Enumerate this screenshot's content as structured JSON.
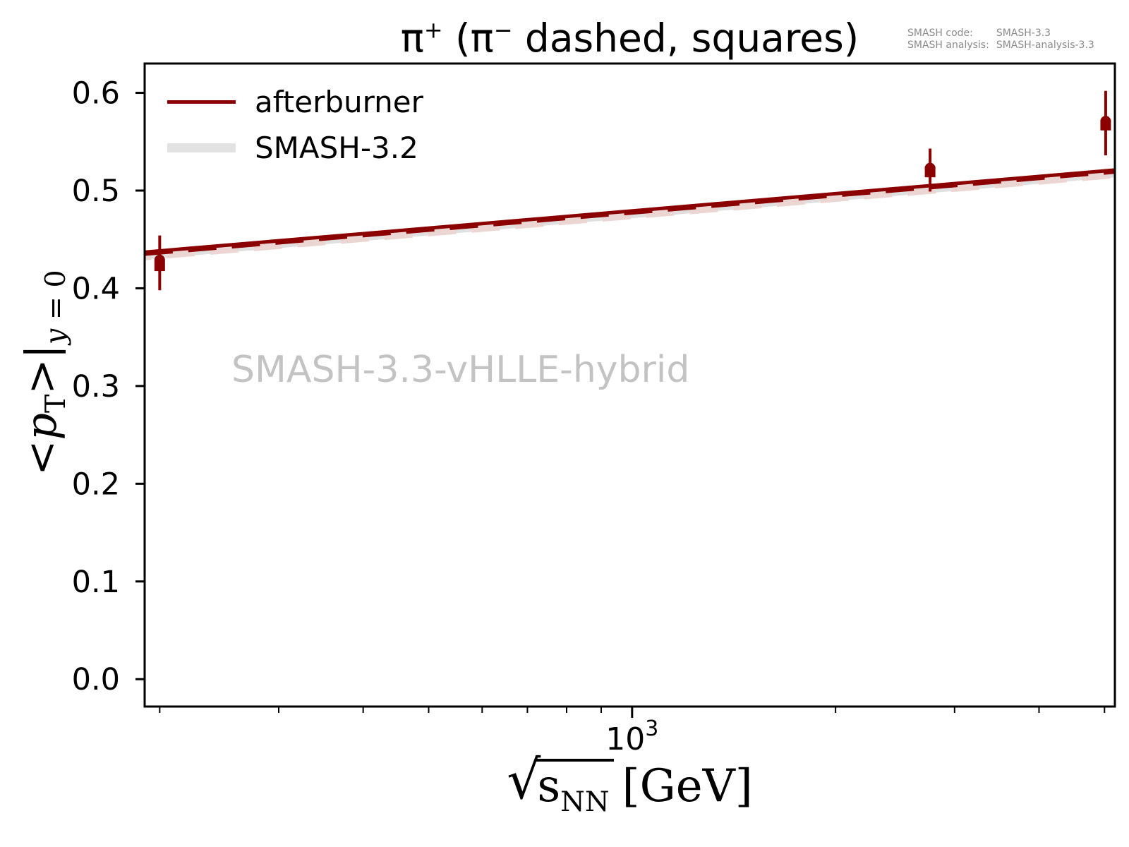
{
  "title": {
    "text": "π+ (π− dashed, squares)",
    "parts": {
      "pi1": "π",
      "sup1": "+",
      "mid": " (π",
      "sup2": "−",
      "post": " dashed, squares)"
    }
  },
  "annotation": {
    "rows": [
      {
        "label": "SMASH code:",
        "value": "SMASH-3.3"
      },
      {
        "label": "SMASH analysis:",
        "value": "SMASH-analysis-3.3"
      }
    ]
  },
  "watermark": "SMASH-3.3-vHLLE-hybrid",
  "legend": {
    "items": [
      {
        "label": "afterburner",
        "color": "#8b0000",
        "swatch": "thin-dark-line"
      },
      {
        "label": "SMASH-3.2",
        "color": "#e2e2e2",
        "swatch": "thick-gray-line"
      }
    ]
  },
  "axes": {
    "ylabel": {
      "open": "<",
      "var": "p",
      "varsub": "T",
      "close": ">|",
      "subvar": "y",
      "subrest": " = 0"
    },
    "xlabel": {
      "radical": "√",
      "var": "s",
      "varsub": "NN",
      "unit": "[GeV]"
    },
    "xtick_label": {
      "base": "10",
      "exp": "3"
    }
  },
  "chart_data": {
    "type": "line",
    "title": "π+ (π− dashed, squares)",
    "xlabel": "sqrt(s_NN) [GeV]",
    "ylabel": "<p_T>|_{y=0}",
    "xscale": "log",
    "grid": false,
    "legend_position": "upper-left",
    "xlim": [
      190,
      5180
    ],
    "ylim": [
      -0.028,
      0.63
    ],
    "yticks": [
      0.0,
      0.1,
      0.2,
      0.3,
      0.4,
      0.5,
      0.6
    ],
    "xticks_major": [
      1000
    ],
    "xticks_minor": [
      200,
      300,
      400,
      500,
      600,
      700,
      800,
      900,
      2000,
      3000,
      4000,
      5000
    ],
    "series": [
      {
        "id": "afterburner-pi-plus",
        "name": "afterburner π+",
        "style": "solid",
        "color": "#8b0000",
        "width": 5,
        "x": [
          190,
          5180
        ],
        "y": [
          0.437,
          0.521
        ]
      },
      {
        "id": "afterburner-pi-minus",
        "name": "afterburner π−",
        "style": "dashed",
        "color": "#8b0000",
        "width": 4.5,
        "dashoffset": 0,
        "x": [
          190,
          5180
        ],
        "y": [
          0.4348,
          0.5188
        ]
      },
      {
        "id": "smash32-pi-plus",
        "name": "SMASH-3.2 π+",
        "style": "solid",
        "color": "#e0e0e0",
        "width": 11,
        "x": [
          190,
          5180
        ],
        "y": [
          0.4335,
          0.5175
        ]
      },
      {
        "id": "smash32-pi-minus",
        "name": "SMASH-3.2 π−",
        "style": "dashed",
        "color": "#ecd6d3",
        "width": 9,
        "dashoffset": 31,
        "x": [
          190,
          5180
        ],
        "y": [
          0.4318,
          0.5158
        ]
      }
    ],
    "points": [
      {
        "x": 200,
        "y_circle": 0.429,
        "y_square": 0.423,
        "yerr": 0.025
      },
      {
        "x": 2760,
        "y_circle": 0.523,
        "y_square": 0.519,
        "yerr": 0.02
      },
      {
        "x": 5020,
        "y_circle": 0.571,
        "y_square": 0.567,
        "yerr": 0.031
      }
    ],
    "marker_color": "#8b0000"
  }
}
